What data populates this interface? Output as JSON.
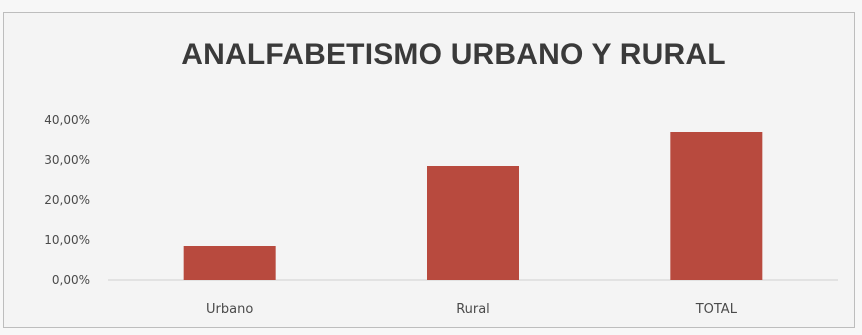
{
  "chart_data": {
    "type": "bar",
    "title": "ANALFABETISMO URBANO Y RURAL",
    "xlabel": "",
    "ylabel": "",
    "categories": [
      "Urbano",
      "Rural",
      "TOTAL"
    ],
    "values": [
      8.5,
      28.5,
      37.0
    ],
    "ylim": [
      0,
      40
    ],
    "yticks": [
      "0,00%",
      "10,00%",
      "20,00%",
      "30,00%",
      "40,00%"
    ],
    "ytick_values": [
      0,
      10,
      20,
      30,
      40
    ],
    "grid": false,
    "legend": "none",
    "bar_color": "#b84a3e"
  }
}
